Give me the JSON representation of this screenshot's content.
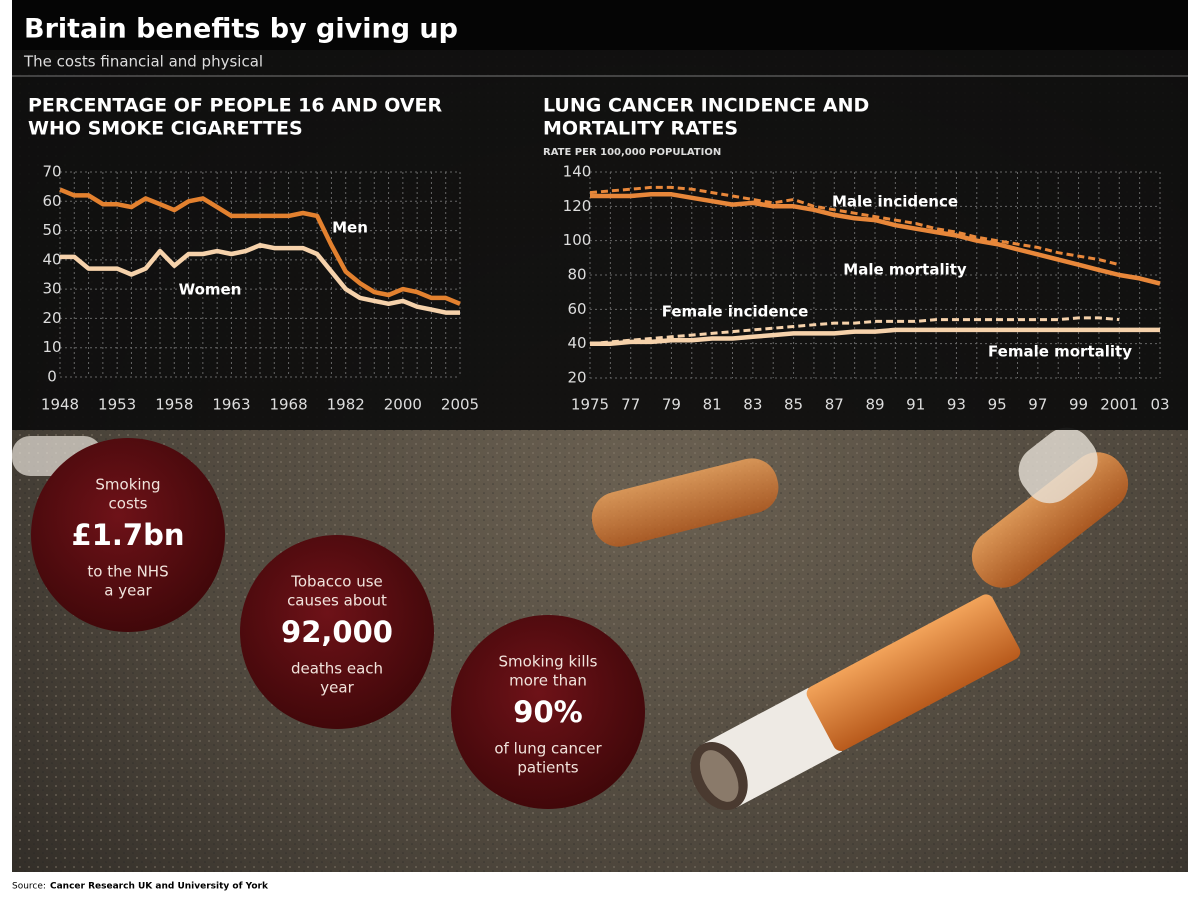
{
  "header": {
    "title": "Britain benefits by giving up",
    "subtitle": "The costs financial and physical"
  },
  "chart_data": [
    {
      "type": "line",
      "title": "PERCENTAGE OF PEOPLE 16 AND OVER",
      "title2": "WHO SMOKE CIGARETTES",
      "categories": [
        "1948",
        null,
        null,
        null,
        "1953",
        null,
        null,
        null,
        "1958",
        null,
        null,
        null,
        "1963",
        null,
        null,
        null,
        "1968",
        null,
        null,
        null,
        "1982",
        null,
        null,
        null,
        "2000",
        null,
        null,
        null,
        "2005"
      ],
      "series": [
        {
          "name": "Men",
          "color": "#e3812f",
          "style": "solid",
          "values": [
            64,
            62,
            62,
            59,
            59,
            58,
            61,
            59,
            57,
            60,
            61,
            58,
            55,
            55,
            55,
            55,
            55,
            56,
            55,
            45,
            36,
            32,
            29,
            28,
            30,
            29,
            27,
            27,
            25
          ]
        },
        {
          "name": "Women",
          "color": "#f6d2ab",
          "style": "solid",
          "values": [
            41,
            41,
            37,
            37,
            37,
            35,
            37,
            43,
            38,
            42,
            42,
            43,
            42,
            43,
            45,
            44,
            44,
            44,
            42,
            36,
            30,
            27,
            26,
            25,
            26,
            24,
            23,
            22,
            22
          ]
        }
      ],
      "ylim": [
        0,
        70
      ],
      "yticks": [
        0,
        10,
        20,
        30,
        40,
        50,
        60,
        70
      ],
      "grid": true
    },
    {
      "type": "line",
      "title": "LUNG CANCER INCIDENCE AND",
      "title2": "MORTALITY RATES",
      "subtitle": "RATE PER 100,000 POPULATION",
      "categories": [
        "1975",
        null,
        "77",
        null,
        "79",
        null,
        "81",
        null,
        "83",
        null,
        "85",
        null,
        "87",
        null,
        "89",
        null,
        "91",
        null,
        "93",
        null,
        "95",
        null,
        "97",
        null,
        "99",
        null,
        "2001",
        null,
        "03"
      ],
      "series": [
        {
          "name": "Male incidence",
          "color": "#e8873a",
          "style": "dashed",
          "values": [
            128,
            129,
            130,
            131,
            131,
            130,
            128,
            126,
            124,
            122,
            124,
            120,
            118,
            116,
            114,
            112,
            110,
            107,
            105,
            102,
            100,
            98,
            96,
            93,
            91,
            89,
            86,
            null,
            null
          ]
        },
        {
          "name": "Male mortality",
          "color": "#e8873a",
          "style": "solid",
          "values": [
            126,
            126,
            126,
            127,
            127,
            125,
            123,
            121,
            122,
            120,
            120,
            118,
            115,
            113,
            112,
            109,
            107,
            105,
            103,
            100,
            98,
            95,
            92,
            89,
            86,
            83,
            80,
            78,
            75
          ]
        },
        {
          "name": "Female incidence",
          "color": "#f6d2ab",
          "style": "dashed",
          "values": [
            40,
            41,
            42,
            43,
            44,
            45,
            46,
            47,
            48,
            49,
            50,
            51,
            52,
            52,
            53,
            53,
            53,
            54,
            54,
            54,
            54,
            54,
            54,
            54,
            55,
            55,
            54,
            null,
            null
          ]
        },
        {
          "name": "Female mortality",
          "color": "#f6d2ab",
          "style": "solid",
          "values": [
            40,
            40,
            41,
            41,
            42,
            42,
            43,
            43,
            44,
            45,
            46,
            46,
            46,
            47,
            47,
            48,
            48,
            48,
            48,
            48,
            48,
            48,
            48,
            48,
            48,
            48,
            48,
            48,
            48
          ]
        }
      ],
      "ylim": [
        20,
        140
      ],
      "yticks": [
        20,
        40,
        60,
        80,
        100,
        120,
        140
      ],
      "grid": true
    }
  ],
  "callouts": [
    {
      "before": [
        "Smoking",
        "costs"
      ],
      "figure": "£1.7bn",
      "after": [
        "to the NHS",
        "a year"
      ]
    },
    {
      "before": [
        "Tobacco use",
        "causes about"
      ],
      "figure": "92,000",
      "after": [
        "deaths each",
        "year"
      ]
    },
    {
      "before": [
        "Smoking kills",
        "more than"
      ],
      "figure": "90%",
      "after": [
        "of lung cancer",
        "patients"
      ]
    }
  ],
  "source": {
    "label": "Source:",
    "text": "Cancer Research UK and University of York"
  }
}
